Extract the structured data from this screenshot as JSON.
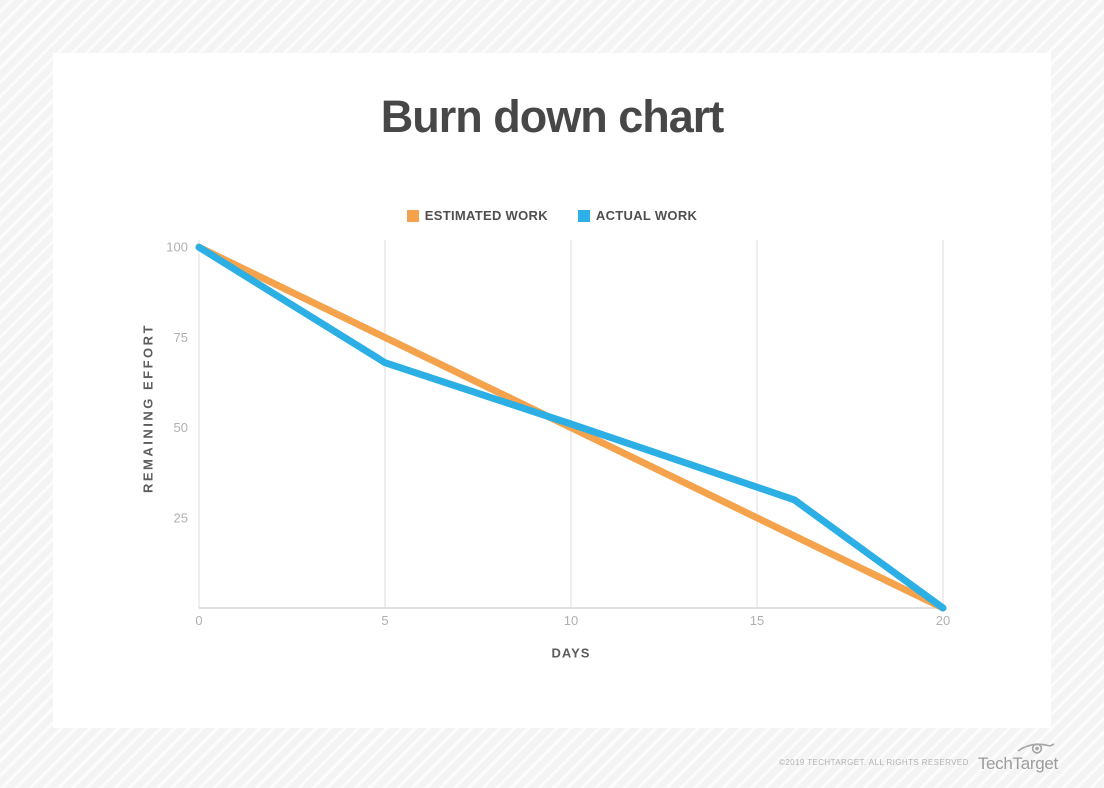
{
  "chart_data": {
    "type": "line",
    "title": "Burn down chart",
    "xlabel": "DAYS",
    "ylabel": "REMAINING EFFORT",
    "xlim": [
      0,
      20
    ],
    "ylim": [
      0,
      102
    ],
    "x_ticks": [
      0,
      5,
      10,
      15,
      20
    ],
    "y_ticks": [
      25,
      50,
      75,
      100
    ],
    "grid": "vertical-gridlines-only",
    "legend_position": "top-center",
    "series": [
      {
        "name": "ESTIMATED WORK",
        "color": "#F5A24C",
        "points": [
          [
            0,
            100
          ],
          [
            20,
            0
          ]
        ]
      },
      {
        "name": "ACTUAL WORK",
        "color": "#2BAFE4",
        "points": [
          [
            0,
            100
          ],
          [
            5,
            68
          ],
          [
            10,
            51
          ],
          [
            16,
            30
          ],
          [
            20,
            0
          ]
        ]
      }
    ]
  },
  "colors": {
    "title": "#474747",
    "tick_label": "#b0b0b0",
    "gridline": "#dedede",
    "axis_line": "#d6d6d6",
    "card_background": "#ffffff"
  },
  "footer": {
    "copyright": "©2019 TECHTARGET. ALL RIGHTS RESERVED",
    "brand": "TechTarget"
  }
}
